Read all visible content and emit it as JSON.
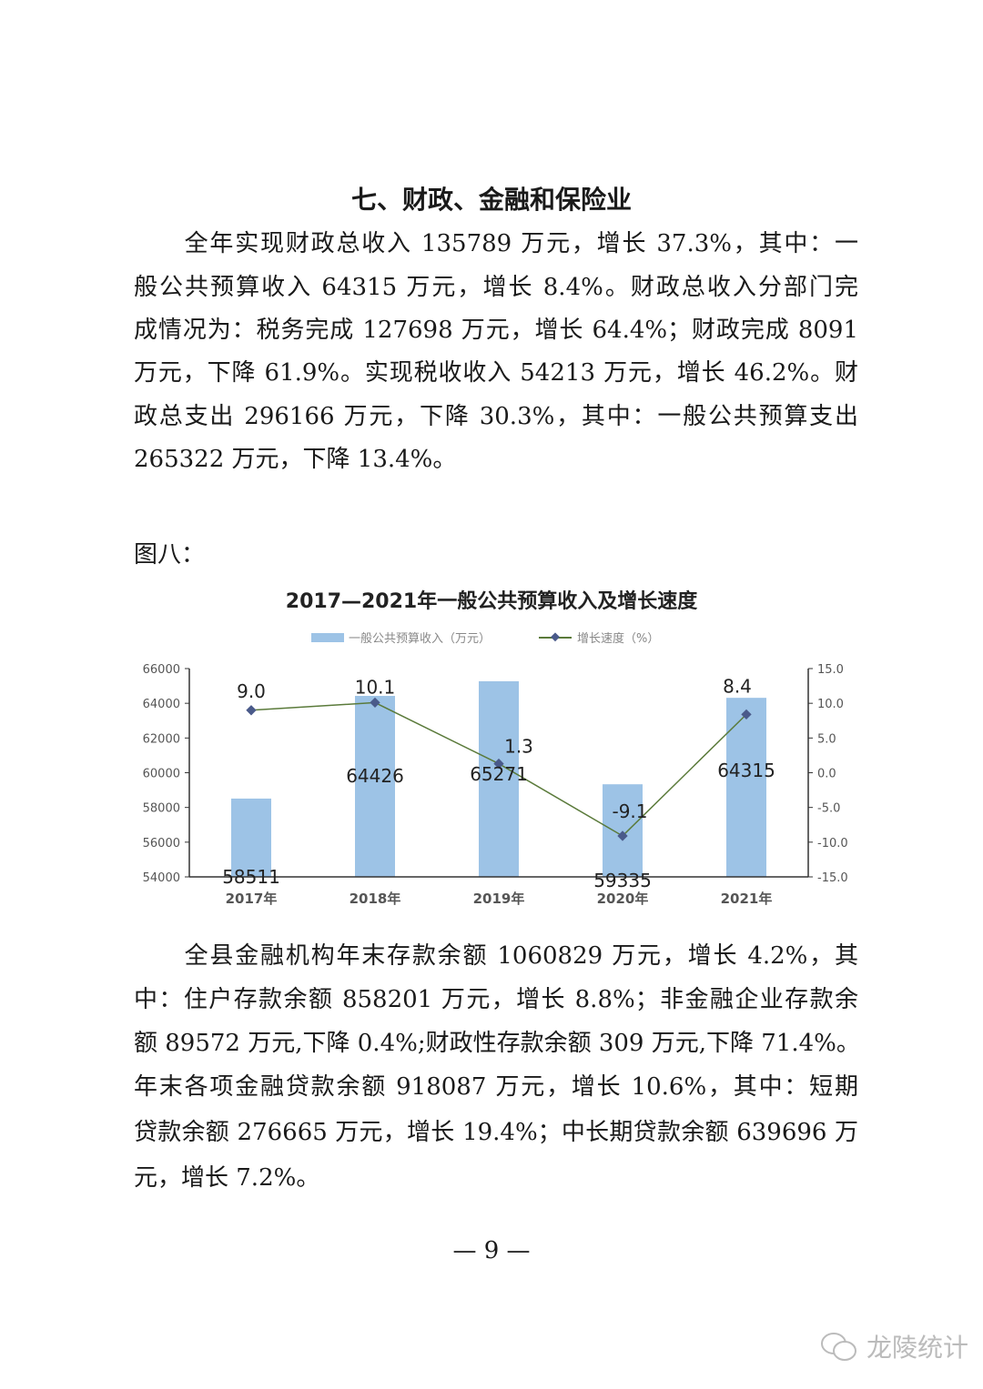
{
  "section_title": "七、财政、金融和保险业",
  "paragraph1": [
    "　　全年实现财政总收入 135789 万元，增长 37.3%，其中：一",
    "般公共预算收入 64315 万元，增长 8.4%。财政总收入分部门完",
    "成情况为：税务完成 127698 万元，增长 64.4%；财政完成 8091",
    "万元，下降 61.9%。实现税收收入 54213 万元，增长 46.2%。财",
    "政总支出 296166 万元，下降 30.3%，其中：一般公共预算支出",
    "265322 万元，下降 13.4%。"
  ],
  "figure_label": "图八：",
  "chart_data": {
    "type": "bar+line",
    "title": "2017—2021年一般公共预算收入及增长速度",
    "categories": [
      "2017年",
      "2018年",
      "2019年",
      "2020年",
      "2021年"
    ],
    "series": [
      {
        "name": "一般公共预算收入（万元）",
        "type": "bar",
        "axis": "left",
        "values": [
          58511,
          64426,
          65271,
          59335,
          64315
        ],
        "color": "#9dc3e6"
      },
      {
        "name": "增长速度（%）",
        "type": "line",
        "axis": "right",
        "values": [
          9.0,
          10.1,
          1.3,
          -9.1,
          8.4
        ],
        "color": "#5a7a3a",
        "marker_color": "#4a5a8a"
      }
    ],
    "left_axis": {
      "min": 54000,
      "max": 66000,
      "ticks": [
        "54000",
        "56000",
        "58000",
        "60000",
        "62000",
        "64000",
        "66000"
      ]
    },
    "right_axis": {
      "min": -15,
      "max": 15,
      "ticks": [
        "-15.0",
        "-10.0",
        "-5.0",
        "0.0",
        "5.0",
        "10.0",
        "15.0"
      ]
    },
    "bar_labels": [
      "58511",
      "64426",
      "65271",
      "59335",
      "64315"
    ],
    "line_labels": [
      "9.0",
      "10.1",
      "1.3",
      "-9.1",
      "8.4"
    ],
    "legend_position": "top",
    "grid": false
  },
  "paragraph2": [
    "　　全县金融机构年末存款余额 1060829 万元，增长 4.2%，其",
    "中：住户存款余额 858201 万元，增长 8.8%；非金融企业存款余",
    "额 89572 万元,下降 0.4%;财政性存款余额 309 万元,下降 71.4%。",
    "年末各项金融贷款余额 918087 万元，增长 10.6%，其中：短期",
    "贷款余额 276665 万元，增长 19.4%；中长期贷款余额 639696 万",
    "元，增长 7.2%。"
  ],
  "page_number": "— 9 —",
  "watermark": "龙陵统计"
}
